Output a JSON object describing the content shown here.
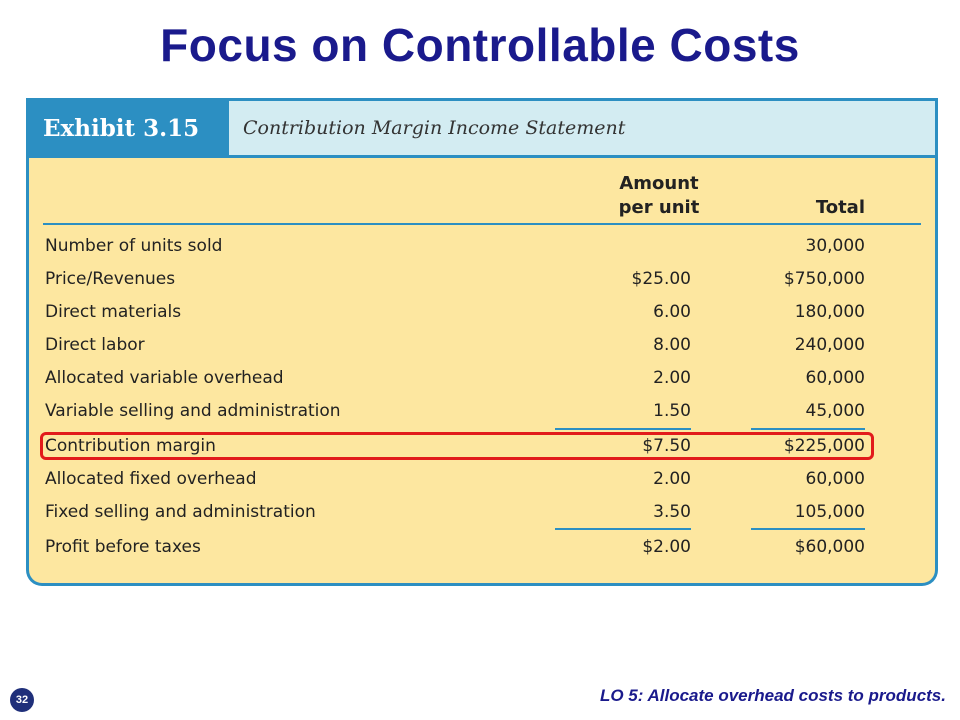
{
  "slide": {
    "title": "Focus on Controllable Costs",
    "page_number": "32",
    "learning_objective": "LO 5:  Allocate overhead costs to products."
  },
  "exhibit": {
    "label": "Exhibit 3.15",
    "title": "Contribution Margin Income Statement",
    "col_per_unit_line1": "Amount",
    "col_per_unit_line2": "per unit",
    "col_total": "Total",
    "rows": [
      {
        "label": "Number of units sold",
        "per_unit": "",
        "total": "30,000"
      },
      {
        "label": "Price/Revenues",
        "per_unit": "$25.00",
        "total": "$750,000"
      },
      {
        "label": "Direct materials",
        "per_unit": "6.00",
        "total": "180,000"
      },
      {
        "label": "Direct labor",
        "per_unit": "8.00",
        "total": "240,000"
      },
      {
        "label": "Allocated variable overhead",
        "per_unit": "2.00",
        "total": "60,000"
      },
      {
        "label": "Variable selling and administration",
        "per_unit": "1.50",
        "total": "45,000"
      },
      {
        "label": "Contribution margin",
        "per_unit": "$7.50",
        "total": "$225,000"
      },
      {
        "label": "Allocated fixed overhead",
        "per_unit": "2.00",
        "total": "60,000"
      },
      {
        "label": "Fixed selling and administration",
        "per_unit": "3.50",
        "total": "105,000"
      },
      {
        "label": "Profit before taxes",
        "per_unit": "$2.00",
        "total": "$60,000"
      }
    ]
  },
  "colors": {
    "title": "#1a1a8c",
    "exhibit_accent": "#2c8fc2",
    "exhibit_background": "#fde7a0",
    "highlight": "#e21b1b"
  }
}
